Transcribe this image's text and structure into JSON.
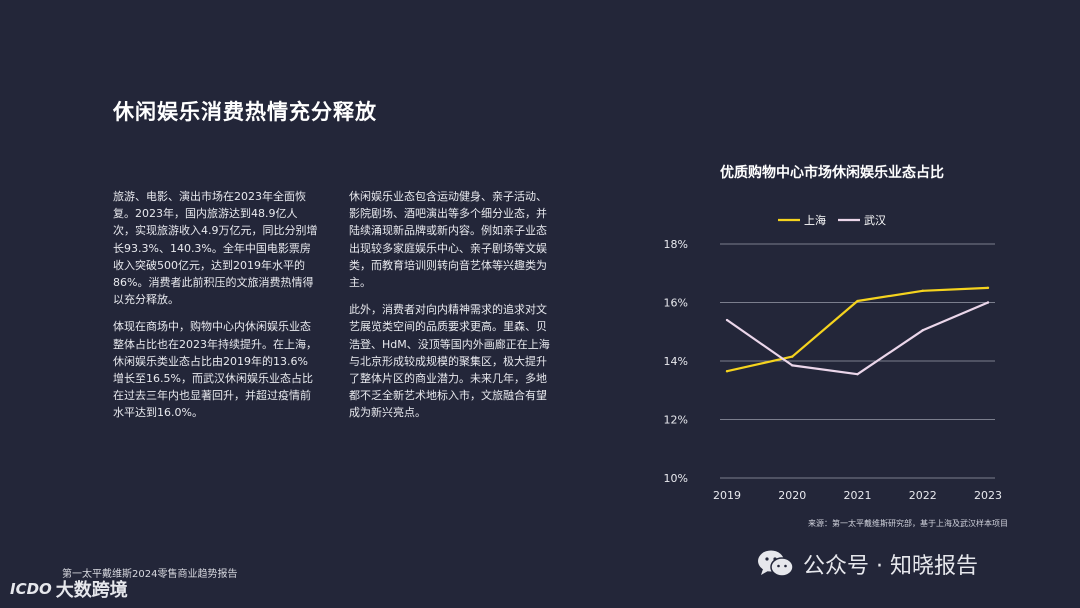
{
  "slide": {
    "title": "休闲娱乐消费热情充分释放",
    "col1": [
      "旅游、电影、演出市场在2023年全面恢复。2023年，国内旅游达到48.9亿人次，实现旅游收入4.9万亿元，同比分别增长93.3%、140.3%。全年中国电影票房收入突破500亿元，达到2019年水平的86%。消费者此前积压的文旅消费热情得以充分释放。",
      "体现在商场中，购物中心内休闲娱乐业态整体占比也在2023年持续提升。在上海，休闲娱乐类业态占比由2019年的13.6%增长至16.5%，而武汉休闲娱乐业态占比在过去三年内也显著回升，并超过疫情前水平达到16.0%。"
    ],
    "col2": [
      "休闲娱乐业态包含运动健身、亲子活动、影院剧场、酒吧演出等多个细分业态，并陆续涌现新品牌或新内容。例如亲子业态出现较多家庭娱乐中心、亲子剧场等文娱类，而教育培训则转向音艺体等兴趣类为主。",
      "此外，消费者对向内精神需求的追求对文艺展览类空间的品质要求更高。里森、贝浩登、HdM、没顶等国内外画廊正在上海与北京形成较成规模的聚集区，极大提升了整体片区的商业潜力。未来几年，多地都不乏全新艺术地标入市，文旅融合有望成为新兴亮点。"
    ],
    "source": "来源：第一太平戴维斯研究部，基于上海及武汉样本项目",
    "report_name": "第一太平戴维斯2024零售商业趋势报告",
    "brand": {
      "logo": "ICDO",
      "name": "大数跨境"
    },
    "watermark": "公众号 · 知晓报告"
  },
  "chart_data": {
    "type": "line",
    "title": "优质购物中心市场休闲娱乐业态占比",
    "x": [
      "2019",
      "2020",
      "2021",
      "2022",
      "2023"
    ],
    "ylim": [
      10,
      18
    ],
    "yticks": [
      "10%",
      "12%",
      "14%",
      "16%",
      "18%"
    ],
    "grid": true,
    "legend_position": "top-left",
    "series": [
      {
        "name": "上海",
        "color": "#f5d31e",
        "values": [
          13.65,
          14.15,
          16.05,
          16.4,
          16.5
        ]
      },
      {
        "name": "武汉",
        "color": "#ebd6ea",
        "values": [
          15.4,
          13.85,
          13.55,
          15.05,
          16.0
        ]
      }
    ]
  }
}
